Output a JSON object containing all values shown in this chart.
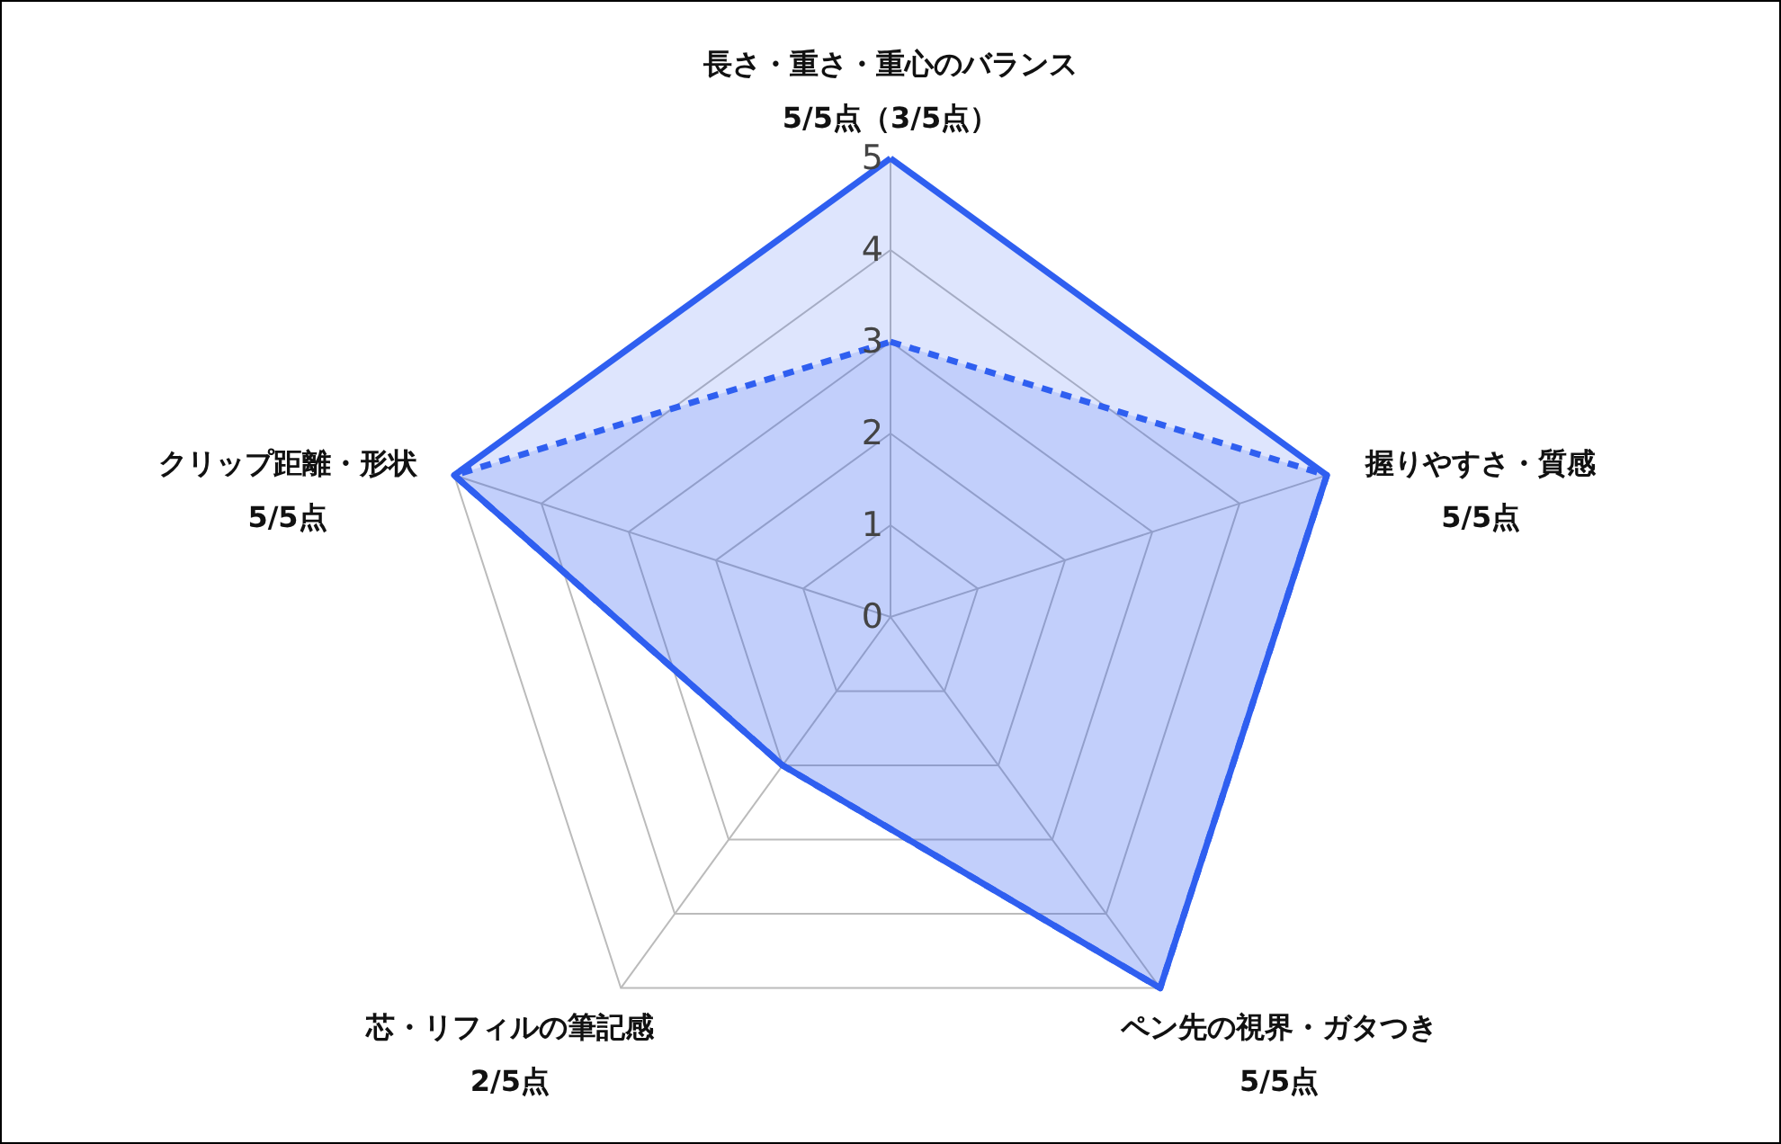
{
  "chart_data": {
    "type": "radar",
    "categories": [
      "長さ・重さ・重心のバランス\n5/5点（3/5点）",
      "握りやすさ・質感\n5/5点",
      "ペン先の視界・ガタつき\n5/5点",
      "芯・リフィルの筆記感\n2/5点",
      "クリップ距離・形状\n5/5点"
    ],
    "series": [
      {
        "color": "#2f5ff0",
        "line_style": "solid",
        "values": [
          5,
          5,
          5,
          2,
          5
        ]
      },
      {
        "color": "#2f5ff0",
        "line_style": "dashed",
        "values": [
          3,
          5,
          5,
          2,
          5
        ]
      }
    ],
    "ylim": [
      0,
      5
    ],
    "yticks": [
      0,
      1,
      2,
      3,
      4,
      5
    ],
    "grid": true
  }
}
